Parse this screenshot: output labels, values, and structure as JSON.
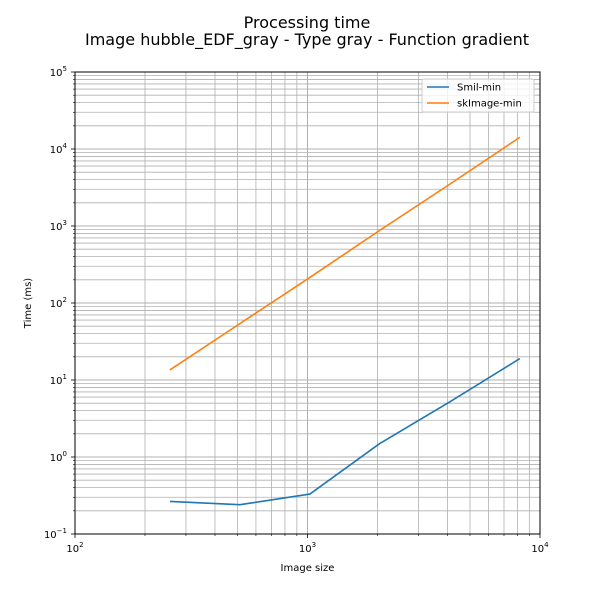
{
  "chart_data": {
    "type": "line",
    "title": "Processing time",
    "subtitle": "Image hubble_EDF_gray - Type gray - Function gradient",
    "xlabel": "Image size",
    "ylabel": "Time (ms)",
    "xscale": "log",
    "yscale": "log",
    "xlim": [
      100,
      10000
    ],
    "ylim": [
      0.1,
      100000
    ],
    "grid": true,
    "grid_minor": true,
    "legend_position": "top-right",
    "x_ticks": [
      {
        "base": "10",
        "exp": "2"
      },
      {
        "base": "10",
        "exp": "3"
      },
      {
        "base": "10",
        "exp": "4"
      }
    ],
    "y_ticks": [
      {
        "base": "10",
        "exp": "−1"
      },
      {
        "base": "10",
        "exp": "0"
      },
      {
        "base": "10",
        "exp": "1"
      },
      {
        "base": "10",
        "exp": "2"
      },
      {
        "base": "10",
        "exp": "3"
      },
      {
        "base": "10",
        "exp": "4"
      },
      {
        "base": "10",
        "exp": "5"
      }
    ],
    "x": [
      256,
      512,
      1024,
      2048,
      4096,
      8192
    ],
    "series": [
      {
        "name": "Smil-min",
        "color": "#1f77b4",
        "values": [
          0.265,
          0.24,
          0.33,
          1.5,
          5.2,
          19
        ]
      },
      {
        "name": "skImage-min",
        "color": "#ff7f0e",
        "values": [
          13.5,
          54,
          215,
          880,
          3500,
          14200
        ]
      }
    ]
  }
}
